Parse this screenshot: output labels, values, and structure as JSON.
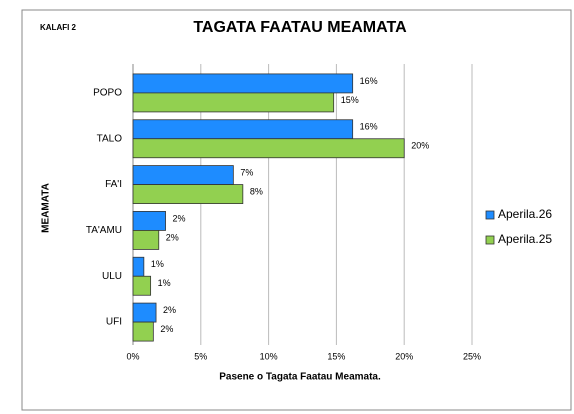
{
  "chart_data": {
    "type": "barh",
    "corner_label": "KALAFI 2",
    "title": "TAGATA FAATAU MEAMATA",
    "xlabel": "Pasene o Tagata Faatau Meamata.",
    "ylabel": "MEAMATA",
    "categories": [
      "POPO",
      "TALO",
      "FA'I",
      "TA'AMU",
      "ULU",
      "UFI"
    ],
    "series": [
      {
        "name": "Aperila.26",
        "color": "#1e8cff",
        "values": [
          16.2,
          16.2,
          7.4,
          2.4,
          0.8,
          1.7
        ],
        "value_labels": [
          "16%",
          "16%",
          "7%",
          "2%",
          "1%",
          "2%"
        ]
      },
      {
        "name": "Aperila.25",
        "color": "#92d050",
        "values": [
          14.8,
          20,
          8.1,
          1.9,
          1.3,
          1.5
        ],
        "value_labels": [
          "15%",
          "20%",
          "8%",
          "2%",
          "1%",
          "2%"
        ]
      }
    ],
    "xlim": [
      0,
      25
    ],
    "xticks": [
      {
        "value": 0,
        "label": "0%"
      },
      {
        "value": 5,
        "label": "5%"
      },
      {
        "value": 10,
        "label": "10%"
      },
      {
        "value": 15,
        "label": "15%"
      },
      {
        "value": 20,
        "label": "20%"
      },
      {
        "value": 25,
        "label": "25%"
      }
    ],
    "grid": true,
    "legend": "right"
  }
}
